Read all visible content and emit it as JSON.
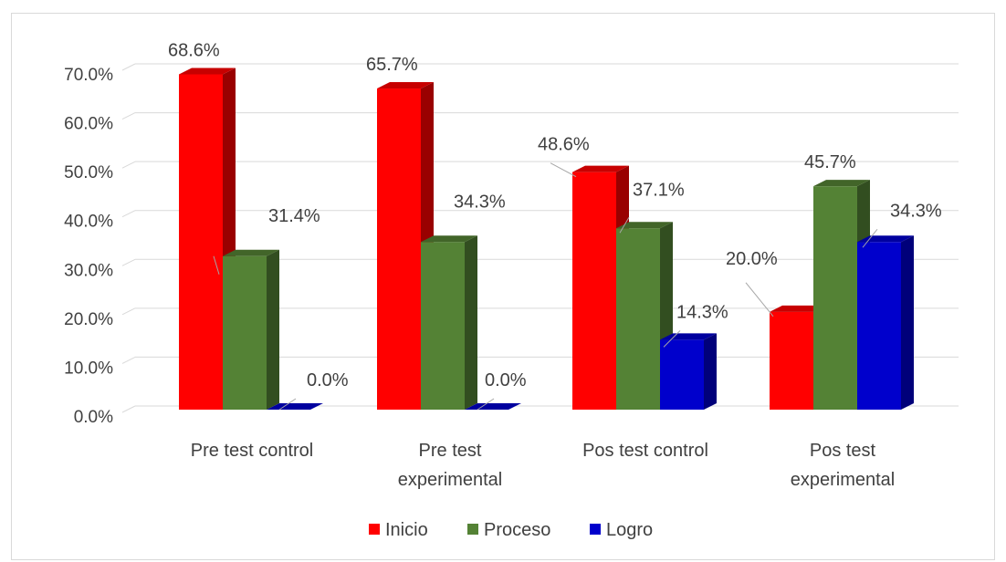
{
  "chart_data": {
    "type": "bar",
    "categories": [
      "Pre test control",
      "Pre test experimental",
      "Pos test control",
      "Pos test experimental"
    ],
    "category_lines": [
      [
        "Pre test control"
      ],
      [
        "Pre test",
        "experimental"
      ],
      [
        "Pos test control"
      ],
      [
        "Pos test",
        "experimental"
      ]
    ],
    "series": [
      {
        "name": "Inicio",
        "values": [
          68.6,
          65.7,
          48.6,
          20.0
        ],
        "color": "#ff0000"
      },
      {
        "name": "Proceso",
        "values": [
          31.4,
          34.3,
          37.1,
          45.7
        ],
        "color": "#548235"
      },
      {
        "name": "Logro",
        "values": [
          0.0,
          0.0,
          14.3,
          34.3
        ],
        "color": "#0000cc"
      }
    ],
    "data_labels": [
      [
        "68.6%",
        "31.4%",
        "0.0%"
      ],
      [
        "65.7%",
        "34.3%",
        "0.0%"
      ],
      [
        "48.6%",
        "37.1%",
        "14.3%"
      ],
      [
        "20.0%",
        "45.7%",
        "34.3%"
      ]
    ],
    "yticks": [
      "0.0%",
      "10.0%",
      "20.0%",
      "30.0%",
      "40.0%",
      "50.0%",
      "60.0%",
      "70.0%"
    ],
    "ylim": [
      0,
      70
    ],
    "grid": true,
    "legend_position": "bottom",
    "title": "",
    "xlabel": "",
    "ylabel": ""
  }
}
